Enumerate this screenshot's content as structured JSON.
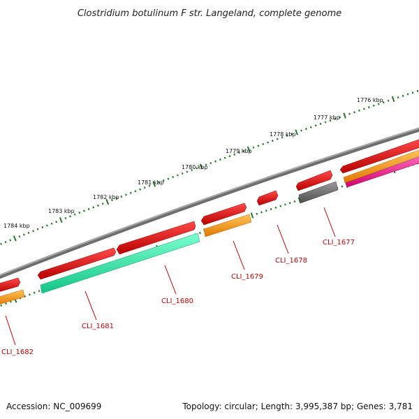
{
  "title": "Clostridium botulinum F str. Langeland, complete genome",
  "footer": {
    "accession": "Accession: NC_009699",
    "summary": "Topology: circular; Length: 3,995,387 bp; Genes: 3,781"
  },
  "colors": {
    "backbone": "#808080",
    "tick": "#1e7a1e",
    "gene_red": "#e60000",
    "cds_orange": "#ff9a00",
    "cds_green": "#1ee6a0",
    "cds_gray": "#6e6e6e",
    "cds_pink": "#ff1a90",
    "label": "#cc0000"
  },
  "ticks": {
    "labels": [
      "1776 kbp",
      "1777 kbp",
      "1778 kbp",
      "1779 kbp",
      "1780 kbp",
      "1781 kbp",
      "1782 kbp",
      "1783 kbp",
      "1784 kbp"
    ]
  },
  "genes": [
    {
      "label": "CLI_1677"
    },
    {
      "label": "CLI_1678"
    },
    {
      "label": "CLI_1679"
    },
    {
      "label": "CLI_1680"
    },
    {
      "label": "CLI_1681"
    },
    {
      "label": "CLI_1682"
    }
  ]
}
